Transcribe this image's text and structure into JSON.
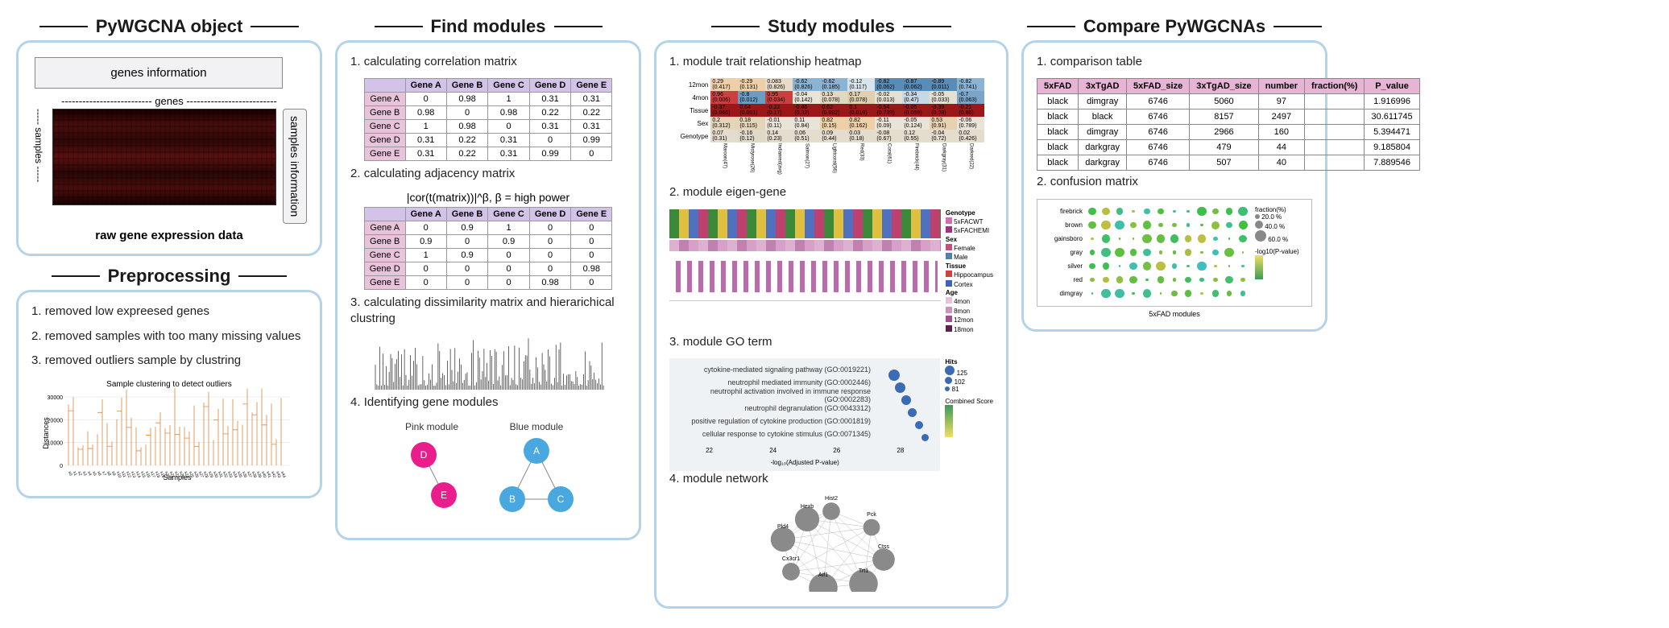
{
  "panels": {
    "object": {
      "title": "PyWGCNA object",
      "genes_info": "genes information",
      "genes_axis": "genes",
      "samples_axis": "samples",
      "samples_info": "samples\ninformation",
      "raw": "raw gene expression data"
    },
    "preproc": {
      "title": "Preprocessing",
      "items": [
        "removed low expreesed genes",
        "removed samples with too many missing values",
        "removed outliers sample by clustring"
      ],
      "dendro": {
        "title": "Sample clustering to detect outliers",
        "ylabel": "Distances",
        "xlabel": "Samples",
        "ylim": [
          0,
          30000
        ],
        "yticks": [
          0,
          10000,
          20000,
          30000
        ],
        "line_color": "#d98640"
      }
    },
    "find": {
      "title": "Find modules",
      "items": [
        "calculating correlation matrix",
        "calculating adjacency matrix",
        "calculating dissimilarity matrix and hierarichical clustring",
        "Identifying gene modules"
      ],
      "formula": "|cor(t(matrix))|^β, β = high power",
      "corr": {
        "cols": [
          "Gene A",
          "Gene B",
          "Gene C",
          "Gene D",
          "Gene E"
        ],
        "rows": [
          [
            "Gene A",
            0,
            0.98,
            1,
            0.31,
            0.31
          ],
          [
            "Gene B",
            0.98,
            0,
            0.98,
            0.22,
            0.22
          ],
          [
            "Gene C",
            1,
            0.98,
            0,
            0.31,
            0.31
          ],
          [
            "Gene D",
            0.31,
            0.22,
            0.31,
            0,
            0.99
          ],
          [
            "Gene E",
            0.31,
            0.22,
            0.31,
            0.99,
            0
          ]
        ]
      },
      "adj": {
        "cols": [
          "Gene A",
          "Gene B",
          "Gene C",
          "Gene D",
          "Gene E"
        ],
        "rows": [
          [
            "Gene A",
            0,
            0.9,
            1,
            0,
            0
          ],
          [
            "Gene B",
            0.9,
            0,
            0.9,
            0,
            0
          ],
          [
            "Gene C",
            1,
            0.9,
            0,
            0,
            0
          ],
          [
            "Gene D",
            0,
            0,
            0,
            0,
            0.98
          ],
          [
            "Gene E",
            0,
            0,
            0,
            0.98,
            0
          ]
        ]
      },
      "modules": {
        "pink": {
          "label": "Pink module",
          "nodes": [
            "D",
            "E"
          ],
          "color": "#e91e8c"
        },
        "blue": {
          "label": "Blue module",
          "nodes": [
            "A",
            "B",
            "C"
          ],
          "color": "#4aa8e0"
        }
      }
    },
    "study": {
      "title": "Study modules",
      "items": [
        "module trait relationship heatmap",
        "module eigen-gene",
        "module GO term",
        "module network"
      ],
      "heatmap": {
        "row_labels": [
          "12mon",
          "4mon",
          "Tissue",
          "Sex",
          "Genotype"
        ],
        "col_labels": [
          "Maroon(47)",
          "Mistyrose(26)",
          "Indianred(avg)",
          "Salmon(27)",
          "Lightcoral(56)",
          "Red(33)",
          "Coral(61)",
          "Firebrick(44)",
          "Darkgray(31)",
          "Darkred(22)"
        ],
        "cells": [
          [
            [
              0.29,
              0.417
            ],
            [
              -0.29,
              0.131
            ],
            [
              0.083,
              0.826
            ],
            [
              -0.62,
              0.826
            ],
            [
              -0.62,
              0.185
            ],
            [
              -0.12,
              0.117
            ],
            [
              -0.82,
              0.062
            ],
            [
              -0.87,
              0.062
            ],
            [
              -0.89,
              0.011
            ],
            [
              -0.82,
              0.741
            ]
          ],
          [
            [
              0.96,
              0.006
            ],
            [
              -0.8,
              0.012
            ],
            [
              0.95,
              0.034
            ],
            [
              -0.04,
              0.142
            ],
            [
              0.13,
              0.078
            ],
            [
              0.17,
              0.078
            ],
            [
              -0.02,
              0.013
            ],
            [
              -0.34,
              0.47
            ],
            [
              -0.05,
              0.033
            ],
            [
              -0.7,
              0.063
            ]
          ],
          [
            [
              -0.37,
              0.066
            ],
            [
              0.64,
              0.001
            ],
            [
              -0.22,
              0.17
            ],
            [
              -0.46,
              0.32
            ],
            [
              0.62,
              0.082
            ],
            [
              0.1,
              0.019
            ],
            [
              -0.54,
              0.739
            ],
            [
              -0.05,
              0.059
            ],
            [
              -0.39,
              0.28
            ],
            [
              -0.21,
              0.86
            ]
          ],
          [
            [
              0.2,
              0.312
            ],
            [
              0.18,
              0.115
            ],
            [
              -0.01,
              0.11
            ],
            [
              0.11,
              0.84
            ],
            [
              0.82,
              0.15
            ],
            [
              0.82,
              0.162
            ],
            [
              -0.11,
              0.09
            ],
            [
              -0.05,
              0.124
            ],
            [
              0.53,
              0.91
            ],
            [
              -0.06,
              0.789
            ]
          ],
          [
            [
              0.07,
              0.31
            ],
            [
              -0.16,
              0.12
            ],
            [
              0.14,
              0.23
            ],
            [
              0.06,
              0.51
            ],
            [
              0.09,
              0.44
            ],
            [
              0.03,
              0.18
            ],
            [
              -0.08,
              0.67
            ],
            [
              0.12,
              0.55
            ],
            [
              -0.04,
              0.72
            ],
            [
              0.02,
              0.426
            ]
          ]
        ],
        "colors": [
          [
            "#eecfa8",
            "#eecfa8",
            "#e8dcc8",
            "#8ab3d4",
            "#8ab3d4",
            "#d8e4ec",
            "#5a8cb8",
            "#5a8cb8",
            "#5a8cb8",
            "#8ab3d4"
          ],
          [
            "#c84040",
            "#6a9cc4",
            "#c84040",
            "#e8e4d8",
            "#e0d8c0",
            "#e0d0b0",
            "#e4e0d4",
            "#c8d8e4",
            "#e4e0d4",
            "#7aa4c8"
          ],
          [
            "#9a1818",
            "#9a1818",
            "#9a1818",
            "#9a1818",
            "#9a1818",
            "#9a1818",
            "#9a1818",
            "#9a1818",
            "#9a1818",
            "#9a1818"
          ],
          [
            "#e4d4b8",
            "#e4d4b8",
            "#e8e4d8",
            "#e8e4d8",
            "#eecfa8",
            "#eecfa8",
            "#e8e4d8",
            "#e8e4d8",
            "#e8d0b0",
            "#e8e4d8"
          ],
          [
            "#e4dccc",
            "#e0d8c8",
            "#e4dccc",
            "#e4dccc",
            "#e4dccc",
            "#e4dccc",
            "#e4dccc",
            "#e4dccc",
            "#e4dccc",
            "#e4dccc"
          ]
        ]
      },
      "eigen_legend": {
        "Genotype": [
          "5xFACWT",
          "5xFACHEMI"
        ],
        "Sex": [
          "Female",
          "Male"
        ],
        "Tissue": [
          "Hippocampus",
          "Cortex"
        ],
        "Age": [
          "4mon",
          "8mon",
          "12mon",
          "18mon"
        ],
        "colors": {
          "5xFACWT": "#d070b0",
          "5xFACHEMI": "#a03080",
          "Female": "#c05080",
          "Male": "#5080b0",
          "Hippocampus": "#d04040",
          "Cortex": "#4060c0",
          "4mon": "#e8c0d8",
          "8mon": "#d090c0",
          "12mon": "#a05090",
          "18mon": "#602050"
        }
      },
      "go": {
        "terms": [
          "cytokine-mediated signaling pathway (GO:0019221)",
          "neutrophil mediated immunity (GO:0002446)",
          "neutrophil activation involved in immune response (GO:0002283)",
          "neutrophil degranulation (GO:0043312)",
          "positive regulation of cytokine production (GO:0001819)",
          "cellular response to cytokine stimulus (GO:0071345)"
        ],
        "xlabel": "-log₁₀(Adjusted P-value)",
        "xticks": [
          22,
          24,
          26,
          28
        ],
        "hits_legend": {
          "label": "Hits",
          "sizes": [
            125,
            102,
            81
          ]
        },
        "score_legend": {
          "label": "Combined Score",
          "range": [
            250,
            300
          ]
        }
      },
      "network": {
        "nodes": [
          "Hist2",
          "Pck",
          "Ctss",
          "Trt1",
          "Aif1",
          "Cx3cr1",
          "Pld4",
          "Hexb"
        ],
        "color": "#8a8a8a"
      }
    },
    "compare": {
      "title": "Compare PyWGCNAs",
      "items": [
        "comparison table",
        "confusion matrix"
      ],
      "table": {
        "cols": [
          "5xFAD",
          "3xTgAD",
          "5xFAD_size",
          "3xTgAD_size",
          "number",
          "fraction(%)",
          "P_value"
        ],
        "rows": [
          [
            "black",
            "dimgray",
            6746,
            5060,
            97,
            "",
            1.916996
          ],
          [
            "black",
            "black",
            6746,
            8157,
            2497,
            "",
            30.611745
          ],
          [
            "black",
            "dimgray",
            6746,
            2966,
            160,
            "",
            5.394471
          ],
          [
            "black",
            "darkgray",
            6746,
            479,
            44,
            "",
            9.185804
          ],
          [
            "black",
            "darkgray",
            6746,
            507,
            40,
            "",
            7.889546
          ]
        ]
      },
      "confusion": {
        "row_labels": [
          "firebrick",
          "brown",
          "gainsboro",
          "gray",
          "silver",
          "red",
          "dimgray"
        ],
        "xlabel": "5xFAD modules",
        "legend_fraction": {
          "label": "fraction(%)",
          "sizes": [
            20.0,
            40.0,
            60.0
          ]
        },
        "legend_pvalue": {
          "label": "-log10(P-value)",
          "range": [
            0,
            3
          ]
        }
      }
    }
  }
}
